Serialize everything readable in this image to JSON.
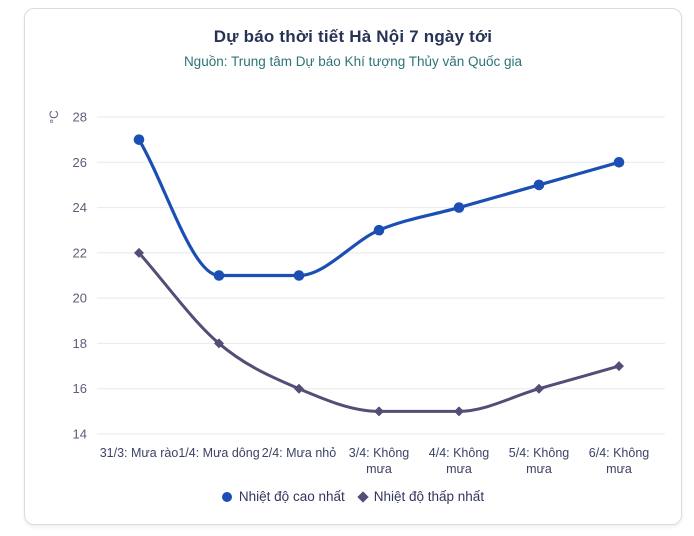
{
  "card": {
    "title": "Dự báo thời tiết Hà Nội 7 ngày tới",
    "subtitle": "Nguồn: Trung tâm Dự báo Khí tượng Thủy văn Quốc gia"
  },
  "chart_data": {
    "type": "line",
    "title": "Dự báo thời tiết Hà Nội 7 ngày tới",
    "subtitle": "Nguồn: Trung tâm Dự báo Khí tượng Thủy văn Quốc gia",
    "y_unit": "°C",
    "ylim": [
      14,
      28
    ],
    "y_tick_step": 2,
    "y_ticks": [
      28,
      26,
      24,
      22,
      20,
      18,
      16,
      14
    ],
    "grid": true,
    "legend_position": "bottom",
    "smooth": true,
    "categories": [
      "31/3: Mưa rào",
      "1/4: Mưa dông",
      "2/4: Mưa nhỏ",
      "3/4: Không mưa",
      "4/4: Không mưa",
      "5/4: Không mưa",
      "6/4: Không mưa"
    ],
    "category_lines": [
      [
        "31/3: Mưa rào"
      ],
      [
        "1/4: Mưa dông"
      ],
      [
        "2/4: Mưa nhỏ"
      ],
      [
        "3/4: Không",
        "mưa"
      ],
      [
        "4/4: Không",
        "mưa"
      ],
      [
        "5/4: Không",
        "mưa"
      ],
      [
        "6/4: Không",
        "mưa"
      ]
    ],
    "series": [
      {
        "name": "Nhiệt độ cao nhất",
        "marker": "circle",
        "color": "#1b4fb3",
        "values": [
          27,
          21,
          21,
          23,
          24,
          25,
          26
        ]
      },
      {
        "name": "Nhiệt độ thấp nhất",
        "marker": "diamond",
        "color": "#534e76",
        "values": [
          22,
          18,
          16,
          15,
          15,
          16,
          17
        ]
      }
    ],
    "colors": {
      "grid": "#e8e8e8",
      "y_tick_label": "#5c5f78",
      "x_tick_label": "#3d4266",
      "title": "#263357",
      "subtitle": "#2c7477",
      "legend_text": "#33365e",
      "card_border": "#dcdcdc",
      "background": "#ffffff"
    }
  }
}
